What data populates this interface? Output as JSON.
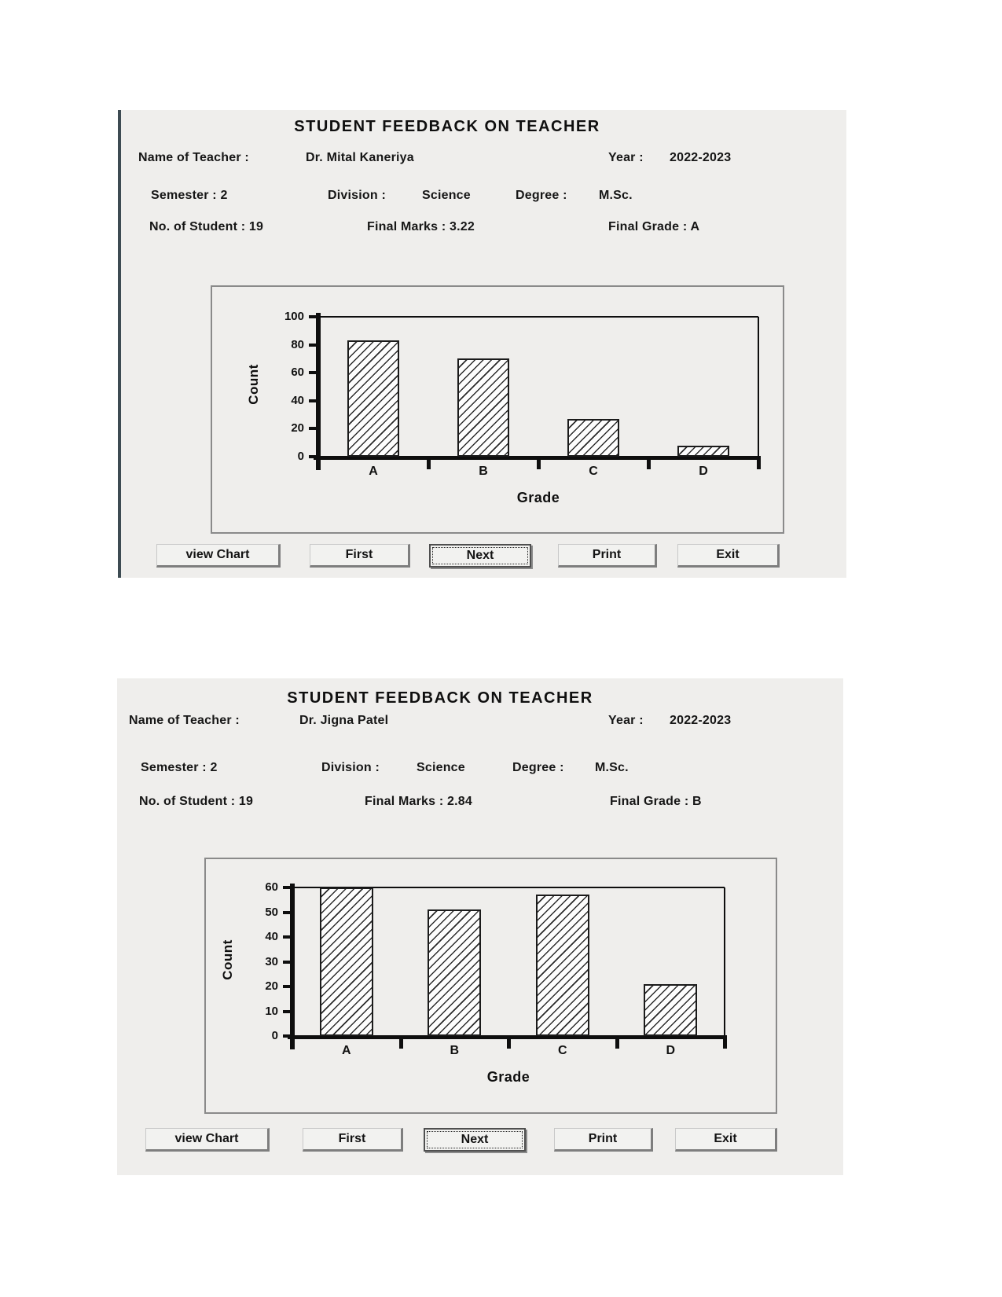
{
  "colors": {
    "panel_bg": "#efeeec",
    "text": "#161616",
    "bar_outline": "#1b1b1b"
  },
  "panels": [
    {
      "title": "STUDENT FEEDBACK ON TEACHER",
      "name_label": "Name of Teacher :",
      "name_value": "Dr. Mital Kaneriya",
      "year_label": "Year :",
      "year_value": "2022-2023",
      "semester": "Semester : 2",
      "division_label": "Division :",
      "division_value": "Science",
      "degree_label": "Degree :",
      "degree_value": "M.Sc.",
      "students": "No. of Student : 19",
      "marks": "Final Marks : 3.22",
      "grade": "Final Grade : A",
      "buttons": {
        "view_chart": "view Chart",
        "first": "First",
        "next": "Next",
        "print": "Print",
        "exit": "Exit"
      },
      "focused_button": "Next"
    },
    {
      "title": "STUDENT FEEDBACK ON TEACHER",
      "name_label": "Name of Teacher :",
      "name_value": "Dr. Jigna Patel",
      "year_label": "Year :",
      "year_value": "2022-2023",
      "semester": "Semester : 2",
      "division_label": "Division :",
      "division_value": "Science",
      "degree_label": "Degree :",
      "degree_value": "M.Sc.",
      "students": "No. of Student : 19",
      "marks": "Final Marks : 2.84",
      "grade": "Final Grade : B",
      "buttons": {
        "view_chart": "view Chart",
        "first": "First",
        "next": "Next",
        "print": "Print",
        "exit": "Exit"
      },
      "focused_button": "Next"
    }
  ],
  "chart_data": [
    {
      "type": "bar",
      "title": "",
      "categories": [
        "A",
        "B",
        "C",
        "D"
      ],
      "values": [
        83,
        70,
        27,
        8
      ],
      "xlabel": "Grade",
      "ylabel": "Count",
      "ylim": [
        0,
        100
      ],
      "yticks": [
        0,
        20,
        40,
        60,
        80,
        100
      ],
      "grid": false,
      "legend": false,
      "bar_style": "white fill with black diagonal hatch"
    },
    {
      "type": "bar",
      "title": "",
      "categories": [
        "A",
        "B",
        "C",
        "D"
      ],
      "values": [
        60,
        51,
        57,
        21
      ],
      "xlabel": "Grade",
      "ylabel": "Count",
      "ylim": [
        0,
        60
      ],
      "yticks": [
        0,
        10,
        20,
        30,
        40,
        50,
        60
      ],
      "grid": false,
      "legend": false,
      "bar_style": "white fill with black diagonal hatch"
    }
  ]
}
